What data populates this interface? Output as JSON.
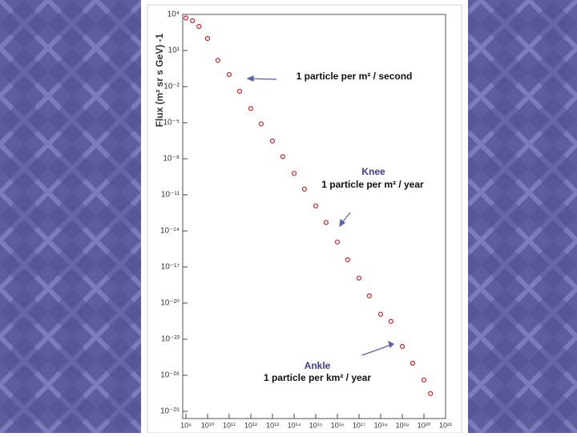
{
  "chart_data": {
    "type": "scatter",
    "ylabel": "Flux (m² sr s GeV) -1",
    "xlog": true,
    "ylog": true,
    "xlim": [
      1000000000.0,
      1e+21
    ],
    "ylim": [
      1e-29,
      10000.0
    ],
    "xticks": [
      {
        "value": 1000000000.0,
        "label": "10⁹"
      },
      {
        "value": 10000000000.0,
        "label": "10¹⁰"
      },
      {
        "value": 100000000000.0,
        "label": "10¹¹"
      },
      {
        "value": 1000000000000.0,
        "label": "10¹²"
      },
      {
        "value": 10000000000000.0,
        "label": "10¹³"
      },
      {
        "value": 100000000000000.0,
        "label": "10¹⁴"
      },
      {
        "value": 1000000000000000.0,
        "label": "10¹⁵"
      },
      {
        "value": 1e+16,
        "label": "10¹⁶"
      },
      {
        "value": 1e+17,
        "label": "10¹⁷"
      },
      {
        "value": 1e+18,
        "label": "10¹⁸"
      },
      {
        "value": 1e+19,
        "label": "10¹⁹"
      },
      {
        "value": 1e+20,
        "label": "10²⁰"
      },
      {
        "value": 1e+21,
        "label": "10²¹"
      }
    ],
    "yticks": [
      {
        "value": 10000.0,
        "label": "10⁴"
      },
      {
        "value": 10.0,
        "label": "10¹"
      },
      {
        "value": 0.01,
        "label": "10⁻²"
      },
      {
        "value": 1e-05,
        "label": "10⁻⁵"
      },
      {
        "value": 1e-08,
        "label": "10⁻⁸"
      },
      {
        "value": 1e-11,
        "label": "10⁻¹¹"
      },
      {
        "value": 1e-14,
        "label": "10⁻¹⁴"
      },
      {
        "value": 1e-17,
        "label": "10⁻¹⁷"
      },
      {
        "value": 1e-20,
        "label": "10⁻²⁰"
      },
      {
        "value": 1e-23,
        "label": "10⁻²³"
      },
      {
        "value": 1e-26,
        "label": "10⁻²⁶"
      },
      {
        "value": 1e-29,
        "label": "10⁻²⁹"
      }
    ],
    "series": [
      {
        "color": "#d62020",
        "x": [
          1000000000.0,
          2000000000.0,
          4000000000.0,
          10000000000.0,
          30000000000.0,
          100000000000.0,
          300000000000.0,
          1000000000000.0,
          3000000000000.0,
          10000000000000.0,
          30000000000000.0,
          100000000000000.0,
          300000000000000.0,
          1000000000000000.0,
          3000000000000000.0,
          1e+16,
          3e+16,
          1e+17,
          3e+17,
          1e+18,
          3e+18,
          1e+19,
          3e+19,
          1e+20,
          2e+20
        ],
        "values": [
          5000,
          3000,
          1000,
          100,
          1.5,
          0.1,
          0.004,
          0.00015,
          8e-06,
          3e-07,
          1.5e-08,
          6e-10,
          3e-11,
          1.2e-12,
          5e-14,
          1.2e-15,
          4e-17,
          1.2e-18,
          4e-20,
          1.2e-21,
          3e-22,
          2.5e-24,
          1e-25,
          4e-27,
          3e-28
        ]
      }
    ],
    "annotations": [
      "1 particle per m² / second",
      "Knee",
      "1 particle per m² / year",
      "Ankle",
      "1 particle per km² / year"
    ]
  }
}
